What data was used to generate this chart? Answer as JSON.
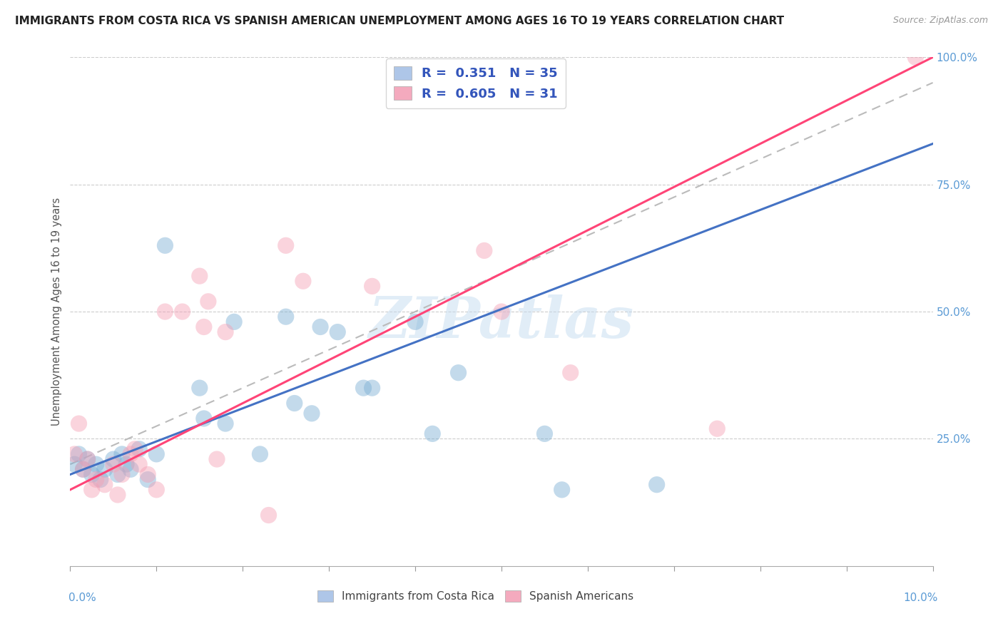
{
  "title": "IMMIGRANTS FROM COSTA RICA VS SPANISH AMERICAN UNEMPLOYMENT AMONG AGES 16 TO 19 YEARS CORRELATION CHART",
  "source": "Source: ZipAtlas.com",
  "ylabel": "Unemployment Among Ages 16 to 19 years",
  "xlim": [
    0.0,
    10.0
  ],
  "ylim": [
    0.0,
    100.0
  ],
  "blue_R": 0.351,
  "blue_N": 35,
  "pink_R": 0.605,
  "pink_N": 31,
  "blue_color": "#7BAFD4",
  "pink_color": "#F4A0B5",
  "blue_line_color": "#4472C4",
  "pink_line_color": "#FF4477",
  "dashed_line_color": "#BBBBBB",
  "watermark": "ZIPatlas",
  "legend_box_blue": "#AEC6E8",
  "legend_box_pink": "#F4AABE",
  "title_color": "#222222",
  "axis_label_color": "#5B9BD5",
  "blue_line_x0": 0.0,
  "blue_line_y0": 18.0,
  "blue_line_x1": 10.0,
  "blue_line_y1": 83.0,
  "pink_line_x0": 0.0,
  "pink_line_y0": 15.0,
  "pink_line_x1": 10.0,
  "pink_line_y1": 100.0,
  "dash_line_x0": 0.0,
  "dash_line_y0": 20.0,
  "dash_line_x1": 10.0,
  "dash_line_y1": 95.0,
  "blue_scatter_x": [
    0.05,
    0.1,
    0.15,
    0.2,
    0.25,
    0.3,
    0.35,
    0.4,
    0.5,
    0.55,
    0.6,
    0.65,
    0.7,
    0.8,
    0.9,
    1.0,
    1.1,
    1.5,
    1.55,
    1.8,
    1.9,
    2.2,
    2.5,
    2.6,
    2.8,
    2.9,
    3.1,
    3.4,
    3.5,
    4.0,
    4.2,
    4.5,
    5.5,
    5.7,
    6.8
  ],
  "blue_scatter_y": [
    20,
    22,
    19,
    21,
    18,
    20,
    17,
    19,
    21,
    18,
    22,
    20,
    19,
    23,
    17,
    22,
    63,
    35,
    29,
    28,
    48,
    22,
    49,
    32,
    30,
    47,
    46,
    35,
    35,
    48,
    26,
    38,
    26,
    15,
    16
  ],
  "pink_scatter_x": [
    0.05,
    0.1,
    0.15,
    0.2,
    0.25,
    0.3,
    0.4,
    0.5,
    0.55,
    0.6,
    0.7,
    0.75,
    0.8,
    0.9,
    1.0,
    1.1,
    1.3,
    1.5,
    1.55,
    1.6,
    1.7,
    1.8,
    2.3,
    2.5,
    2.7,
    3.5,
    4.8,
    5.0,
    5.8,
    7.5,
    9.8
  ],
  "pink_scatter_y": [
    22,
    28,
    19,
    21,
    15,
    17,
    16,
    20,
    14,
    18,
    22,
    23,
    20,
    18,
    15,
    50,
    50,
    57,
    47,
    52,
    21,
    46,
    10,
    63,
    56,
    55,
    62,
    50,
    38,
    27,
    100
  ]
}
